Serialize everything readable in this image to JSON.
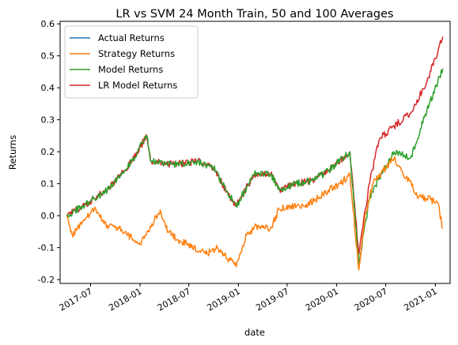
{
  "chart_data": {
    "type": "line",
    "title": "LR vs SVM 24 Month Train, 50 and 100 Averages",
    "xlabel": "date",
    "ylabel": "Returns",
    "xlim": [
      "2017-03-10",
      "2021-02-25"
    ],
    "ylim": [
      -0.212,
      0.608
    ],
    "grid": false,
    "legend_position": "top-left",
    "x_ticks": [
      "2017-07",
      "2018-01",
      "2018-07",
      "2019-01",
      "2019-07",
      "2020-01",
      "2020-07",
      "2021-01"
    ],
    "y_ticks": [
      -0.2,
      -0.1,
      0.0,
      0.1,
      0.2,
      0.3,
      0.4,
      0.5,
      0.6
    ],
    "series": [
      {
        "name": "Actual Returns",
        "color": "#1f77b4",
        "points": [
          [
            "2017-04-03",
            0.0
          ],
          [
            "2017-06-01",
            0.03
          ],
          [
            "2017-09-01",
            0.08
          ],
          [
            "2017-12-01",
            0.17
          ],
          [
            "2018-01-26",
            0.25
          ],
          [
            "2018-02-09",
            0.17
          ],
          [
            "2018-05-01",
            0.16
          ],
          [
            "2018-08-01",
            0.17
          ],
          [
            "2018-10-01",
            0.15
          ],
          [
            "2018-11-01",
            0.1
          ],
          [
            "2018-12-24",
            0.03
          ],
          [
            "2019-03-01",
            0.13
          ],
          [
            "2019-05-01",
            0.13
          ],
          [
            "2019-06-03",
            0.08
          ],
          [
            "2019-08-01",
            0.1
          ],
          [
            "2019-10-01",
            0.11
          ],
          [
            "2019-12-01",
            0.14
          ],
          [
            "2020-02-19",
            0.2
          ],
          [
            "2020-03-23",
            -0.15
          ],
          [
            "2020-05-01",
            0.05
          ],
          [
            "2020-06-08",
            0.12
          ],
          [
            "2020-08-01",
            0.2
          ],
          [
            "2020-10-01",
            0.18
          ],
          [
            "2020-12-01",
            0.33
          ],
          [
            "2021-01-29",
            0.46
          ]
        ]
      },
      {
        "name": "Strategy Returns",
        "color": "#ff7f0e",
        "points": [
          [
            "2017-04-03",
            0.0
          ],
          [
            "2017-04-24",
            -0.06
          ],
          [
            "2017-06-01",
            -0.02
          ],
          [
            "2017-07-15",
            0.02
          ],
          [
            "2017-09-01",
            -0.03
          ],
          [
            "2017-10-15",
            -0.04
          ],
          [
            "2017-12-01",
            -0.07
          ],
          [
            "2018-01-01",
            -0.09
          ],
          [
            "2018-02-01",
            -0.05
          ],
          [
            "2018-03-01",
            0.0
          ],
          [
            "2018-03-20",
            0.01
          ],
          [
            "2018-04-15",
            -0.05
          ],
          [
            "2018-06-01",
            -0.08
          ],
          [
            "2018-07-15",
            -0.1
          ],
          [
            "2018-09-01",
            -0.12
          ],
          [
            "2018-10-15",
            -0.1
          ],
          [
            "2018-12-01",
            -0.14
          ],
          [
            "2018-12-24",
            -0.16
          ],
          [
            "2019-02-01",
            -0.06
          ],
          [
            "2019-03-15",
            -0.03
          ],
          [
            "2019-05-01",
            -0.04
          ],
          [
            "2019-06-01",
            0.02
          ],
          [
            "2019-07-15",
            0.03
          ],
          [
            "2019-09-01",
            0.03
          ],
          [
            "2019-10-15",
            0.05
          ],
          [
            "2019-12-01",
            0.08
          ],
          [
            "2020-01-15",
            0.1
          ],
          [
            "2020-02-19",
            0.13
          ],
          [
            "2020-03-23",
            -0.17
          ],
          [
            "2020-04-15",
            0.0
          ],
          [
            "2020-05-15",
            0.1
          ],
          [
            "2020-07-01",
            0.15
          ],
          [
            "2020-08-01",
            0.18
          ],
          [
            "2020-09-15",
            0.12
          ],
          [
            "2020-11-01",
            0.06
          ],
          [
            "2020-12-15",
            0.05
          ],
          [
            "2021-01-10",
            0.04
          ],
          [
            "2021-01-29",
            -0.04
          ]
        ]
      },
      {
        "name": "Model Returns",
        "color": "#2ca02c",
        "points": [
          [
            "2017-04-03",
            0.0
          ],
          [
            "2017-06-01",
            0.03
          ],
          [
            "2017-09-01",
            0.08
          ],
          [
            "2017-12-01",
            0.17
          ],
          [
            "2018-01-26",
            0.25
          ],
          [
            "2018-02-09",
            0.17
          ],
          [
            "2018-05-01",
            0.16
          ],
          [
            "2018-08-01",
            0.17
          ],
          [
            "2018-10-01",
            0.15
          ],
          [
            "2018-11-01",
            0.1
          ],
          [
            "2018-12-24",
            0.03
          ],
          [
            "2019-03-01",
            0.13
          ],
          [
            "2019-05-01",
            0.13
          ],
          [
            "2019-06-03",
            0.08
          ],
          [
            "2019-08-01",
            0.1
          ],
          [
            "2019-10-01",
            0.11
          ],
          [
            "2019-12-01",
            0.14
          ],
          [
            "2020-02-19",
            0.2
          ],
          [
            "2020-03-23",
            -0.15
          ],
          [
            "2020-05-01",
            0.05
          ],
          [
            "2020-06-08",
            0.12
          ],
          [
            "2020-08-01",
            0.2
          ],
          [
            "2020-10-01",
            0.18
          ],
          [
            "2020-12-01",
            0.33
          ],
          [
            "2021-01-29",
            0.46
          ]
        ]
      },
      {
        "name": "LR Model Returns",
        "color": "#d62728",
        "points": [
          [
            "2017-04-03",
            0.0
          ],
          [
            "2017-06-01",
            0.03
          ],
          [
            "2017-09-01",
            0.08
          ],
          [
            "2017-12-01",
            0.17
          ],
          [
            "2018-01-26",
            0.25
          ],
          [
            "2018-02-09",
            0.17
          ],
          [
            "2018-05-01",
            0.16
          ],
          [
            "2018-08-01",
            0.17
          ],
          [
            "2018-10-01",
            0.15
          ],
          [
            "2018-11-01",
            0.1
          ],
          [
            "2018-12-24",
            0.03
          ],
          [
            "2019-03-01",
            0.13
          ],
          [
            "2019-05-01",
            0.13
          ],
          [
            "2019-06-03",
            0.08
          ],
          [
            "2019-08-01",
            0.1
          ],
          [
            "2019-10-01",
            0.11
          ],
          [
            "2019-12-01",
            0.14
          ],
          [
            "2020-02-19",
            0.2
          ],
          [
            "2020-03-23",
            -0.12
          ],
          [
            "2020-05-01",
            0.1
          ],
          [
            "2020-06-08",
            0.24
          ],
          [
            "2020-08-01",
            0.28
          ],
          [
            "2020-10-01",
            0.32
          ],
          [
            "2020-12-01",
            0.42
          ],
          [
            "2021-01-29",
            0.56
          ]
        ]
      }
    ]
  }
}
